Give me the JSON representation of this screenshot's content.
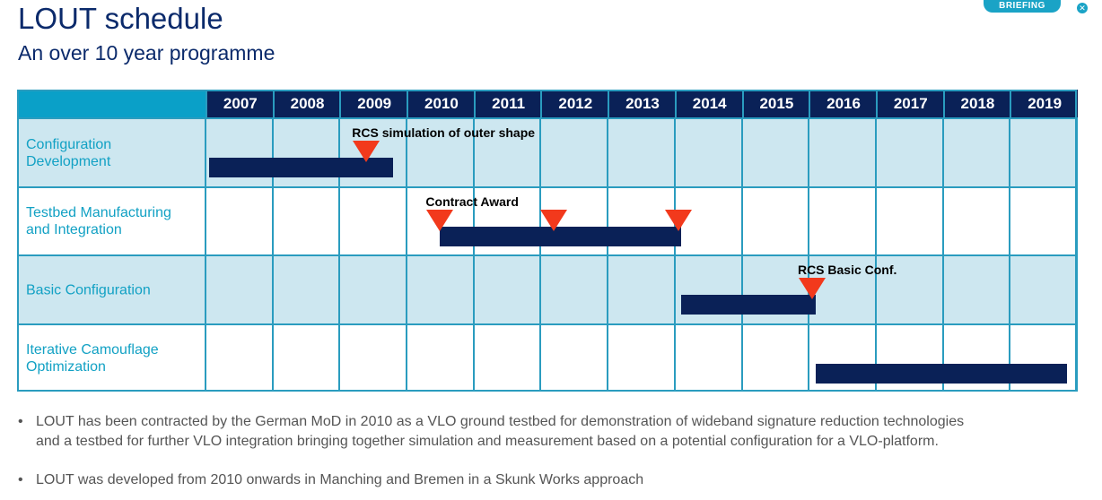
{
  "header": {
    "title": "LOUT schedule",
    "subtitle": "An over 10 year programme",
    "logo_text": "BRIEFING"
  },
  "schedule": {
    "years": [
      "2007",
      "2008",
      "2009",
      "2010",
      "2011",
      "2012",
      "2013",
      "2014",
      "2015",
      "2016",
      "2017",
      "2018",
      "2019"
    ],
    "rows": [
      {
        "label": "Configuration Development",
        "bar": [
          2007.05,
          2009.8
        ],
        "milestones": [
          {
            "year": 2009.4,
            "label": "RCS simulation of outer shape"
          }
        ]
      },
      {
        "label": "Testbed Manufacturing and Integration",
        "bar": [
          2010.5,
          2014.1
        ],
        "milestones": [
          {
            "year": 2010.5,
            "label": "Contract Award"
          },
          {
            "year": 2012.2,
            "label": ""
          },
          {
            "year": 2014.05,
            "label": ""
          }
        ]
      },
      {
        "label": "Basic Configuration",
        "bar": [
          2014.1,
          2016.1
        ],
        "milestones": [
          {
            "year": 2016.05,
            "label": "RCS Basic Conf."
          }
        ]
      },
      {
        "label": "Iterative Camouflage Optimization",
        "bar": [
          2016.1,
          2019.85
        ],
        "milestones": []
      }
    ],
    "colors": {
      "bar": "#0a2157",
      "milestone": "#f2391c",
      "header": "#0a2157",
      "band": "#cde7f0"
    }
  },
  "bullets": [
    "LOUT has been contracted by the German MoD in 2010 as a VLO ground testbed for demonstration of wideband signature reduction technologies and a testbed for further VLO integration bringing together simulation and measurement based on a potential configuration for a VLO-platform.",
    "LOUT was developed from 2010 onwards in Manching and Bremen in a Skunk Works approach"
  ]
}
